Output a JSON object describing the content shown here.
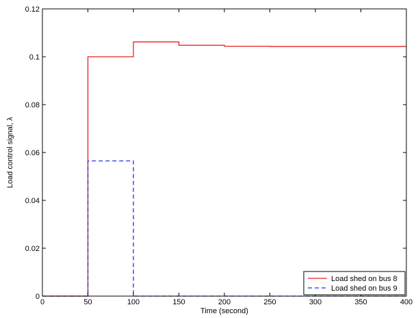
{
  "chart_data": {
    "type": "line",
    "title": "",
    "xlabel": "Time (second)",
    "ylabel": "Load control signal, λ",
    "xlim": [
      0,
      400
    ],
    "ylim": [
      0,
      0.12
    ],
    "xticks": [
      0,
      50,
      100,
      150,
      200,
      250,
      300,
      350,
      400
    ],
    "yticks": [
      0,
      0.02,
      0.04,
      0.06,
      0.08,
      0.1,
      0.12
    ],
    "xtick_labels": [
      "0",
      "50",
      "100",
      "150",
      "200",
      "250",
      "300",
      "350",
      "400"
    ],
    "ytick_labels": [
      "0",
      "0.02",
      "0.04",
      "0.06",
      "0.08",
      "0.1",
      "0.12"
    ],
    "grid": false,
    "legend_position": "bottom-right",
    "series": [
      {
        "name": "Load shed on bus 8",
        "color": "#e8201c",
        "dash": "solid",
        "x": [
          0,
          50,
          50,
          100,
          100,
          150,
          150,
          200,
          200,
          250,
          250,
          400
        ],
        "y": [
          0,
          0,
          0.1,
          0.1,
          0.1062,
          0.1062,
          0.1048,
          0.1048,
          0.1044,
          0.1044,
          0.1043,
          0.1043
        ]
      },
      {
        "name": "Load shed on bus 9",
        "color": "#1c2de8",
        "dash": "dashed",
        "x": [
          0,
          50,
          50,
          100,
          100,
          400
        ],
        "y": [
          0,
          0,
          0.0565,
          0.0565,
          0,
          0
        ]
      }
    ]
  }
}
